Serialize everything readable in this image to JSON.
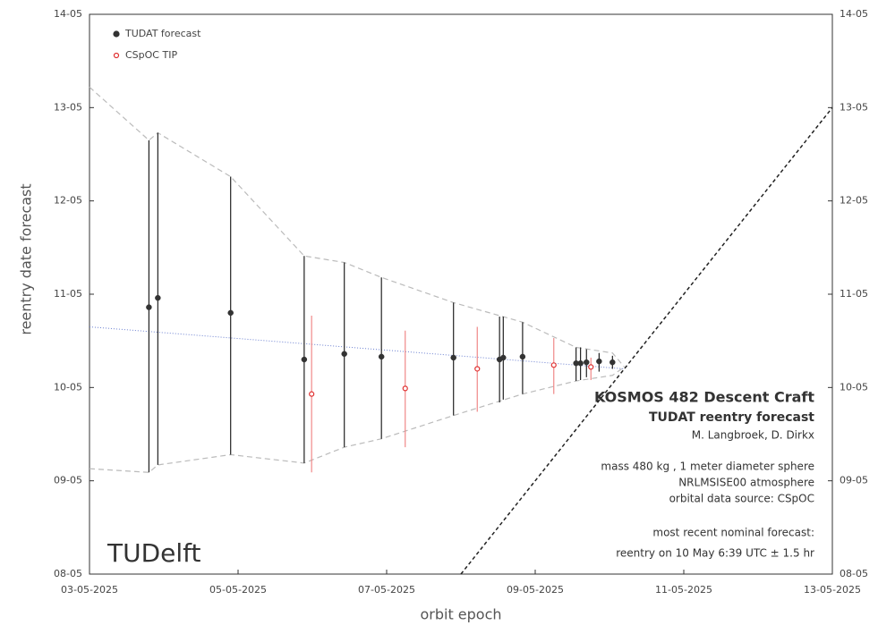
{
  "chart_data": {
    "type": "scatter",
    "x_label": "orbit epoch",
    "y_label": "reentry date forecast",
    "xlim": [
      3,
      13
    ],
    "ylim": [
      8,
      14
    ],
    "xticks": [
      {
        "value": 3,
        "label": "03-05-2025"
      },
      {
        "value": 5,
        "label": "05-05-2025"
      },
      {
        "value": 7,
        "label": "07-05-2025"
      },
      {
        "value": 9,
        "label": "09-05-2025"
      },
      {
        "value": 11,
        "label": "11-05-2025"
      },
      {
        "value": 13,
        "label": "13-05-2025"
      }
    ],
    "yticks": [
      {
        "value": 8,
        "label": "08-05"
      },
      {
        "value": 9,
        "label": "09-05"
      },
      {
        "value": 10,
        "label": "10-05"
      },
      {
        "value": 11,
        "label": "11-05"
      },
      {
        "value": 12,
        "label": "12-05"
      },
      {
        "value": 13,
        "label": "13-05"
      },
      {
        "value": 14,
        "label": "14-05"
      }
    ],
    "series": [
      {
        "name": "TUDAT forecast",
        "color": "#333333",
        "bar_color": "#222222",
        "marker": "filled",
        "x": [
          3.8,
          3.92,
          4.9,
          5.89,
          6.43,
          6.93,
          7.9,
          8.52,
          8.57,
          8.83,
          9.55,
          9.61,
          9.69,
          9.86,
          10.04
        ],
        "values": [
          10.86,
          10.96,
          10.8,
          10.3,
          10.36,
          10.33,
          10.32,
          10.3,
          10.32,
          10.33,
          10.26,
          10.26,
          10.27,
          10.28,
          10.27
        ],
        "low": [
          9.09,
          9.17,
          9.28,
          9.19,
          9.36,
          9.45,
          9.7,
          9.84,
          9.87,
          9.93,
          10.07,
          10.08,
          10.11,
          10.17,
          10.2
        ],
        "high": [
          12.65,
          12.73,
          12.26,
          11.41,
          11.34,
          11.18,
          10.91,
          10.76,
          10.76,
          10.7,
          10.43,
          10.43,
          10.41,
          10.37,
          10.34
        ]
      },
      {
        "name": "CSpOC TIP",
        "color": "#e03030",
        "bar_color": "#f08888",
        "marker": "open",
        "x": [
          5.99,
          7.25,
          8.22,
          9.25,
          9.75
        ],
        "values": [
          9.93,
          9.99,
          10.2,
          10.24,
          10.22
        ],
        "low": [
          9.09,
          9.36,
          9.74,
          9.93,
          10.08
        ],
        "high": [
          10.77,
          10.61,
          10.65,
          10.53,
          10.32
        ]
      }
    ],
    "envelope": {
      "color": "#bbbbbb",
      "x": [
        3,
        3.8,
        3.92,
        4.9,
        5.89,
        6.43,
        6.93,
        7.9,
        8.83,
        9.55,
        10.04,
        10.2
      ],
      "upper": [
        13.22,
        12.65,
        12.73,
        12.26,
        11.41,
        11.34,
        11.18,
        10.91,
        10.7,
        10.43,
        10.37,
        10.22
      ],
      "lower": [
        9.13,
        9.09,
        9.17,
        9.28,
        9.19,
        9.36,
        9.45,
        9.7,
        9.93,
        10.07,
        10.13,
        10.22
      ]
    },
    "trend": {
      "color": "#6a7fd0",
      "x": [
        3,
        10.2
      ],
      "values": [
        10.65,
        10.2
      ]
    },
    "diagonal": {
      "color": "#222222",
      "x": [
        8,
        13
      ],
      "values": [
        8,
        13
      ]
    },
    "annotations": {
      "title": "KOSMOS 482 Descent Craft",
      "subtitle": "TUDAT reentry forecast",
      "authors": "M. Langbroek, D. Dirkx",
      "mass": "mass 480 kg , 1 meter diameter sphere",
      "atmosphere": "NRLMSISE00 atmosphere",
      "source": "orbital data source:  CSpOC",
      "recent": "most recent nominal forecast:",
      "reentry": "reentry on 10 May 6:39 UTC ± 1.5 hr",
      "logo": "TUDelft"
    }
  }
}
